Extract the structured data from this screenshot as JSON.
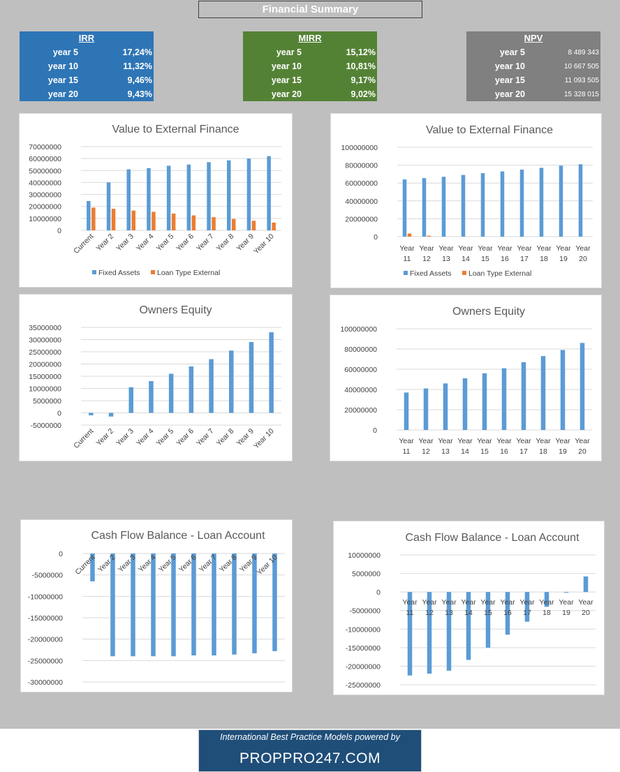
{
  "page": {
    "title": "Financial Summary"
  },
  "metrics": [
    {
      "id": "irr",
      "title": "IRR",
      "color": "#2e75b6",
      "rows": [
        {
          "label": "year 5",
          "value": "17,24%"
        },
        {
          "label": "year 10",
          "value": "11,32%"
        },
        {
          "label": "year 15",
          "value": "9,46%"
        },
        {
          "label": "year 20",
          "value": "9,43%"
        }
      ]
    },
    {
      "id": "mirr",
      "title": "MIRR",
      "color": "#548235",
      "rows": [
        {
          "label": "year 5",
          "value": "15,12%"
        },
        {
          "label": "year 10",
          "value": "10,81%"
        },
        {
          "label": "year 15",
          "value": "9,17%"
        },
        {
          "label": "year 20",
          "value": "9,02%"
        }
      ]
    },
    {
      "id": "npv",
      "title": "NPV",
      "color": "#808080",
      "rows": [
        {
          "label": "year 5",
          "value": "8 489 343"
        },
        {
          "label": "year 10",
          "value": "10 667 505"
        },
        {
          "label": "year 15",
          "value": "11 093 505"
        },
        {
          "label": "year 20",
          "value": "15 328 015"
        }
      ]
    }
  ],
  "colors": {
    "blue": "#5b9bd5",
    "orange": "#ed7d31",
    "grid": "#d9d9d9",
    "text": "#595959"
  },
  "chart_data": [
    {
      "type": "bar",
      "title": "Value to External Finance",
      "categories": [
        "Current",
        "Year 2",
        "Year 3",
        "Year 4",
        "Year 5",
        "Year 6",
        "Year 7",
        "Year 8",
        "Year 9",
        "Year 10"
      ],
      "series": [
        {
          "name": "Fixed Assets",
          "values": [
            24500000,
            40000000,
            51000000,
            52000000,
            54000000,
            55000000,
            57000000,
            58500000,
            60000000,
            62000000
          ]
        },
        {
          "name": "Loan Type External",
          "values": [
            19000000,
            18000000,
            16500000,
            15500000,
            14000000,
            12500000,
            11000000,
            9500000,
            8000000,
            6500000
          ]
        }
      ],
      "ylim": [
        0,
        70000000
      ],
      "yticks": [
        0,
        10000000,
        20000000,
        30000000,
        40000000,
        50000000,
        60000000,
        70000000
      ],
      "legend": "bottom",
      "grid": true
    },
    {
      "type": "bar",
      "title": "Value to External Finance",
      "categories": [
        "Year 11",
        "Year 12",
        "Year 13",
        "Year 14",
        "Year 15",
        "Year 16",
        "Year 17",
        "Year 18",
        "Year 19",
        "Year 20"
      ],
      "series": [
        {
          "name": "Fixed Assets",
          "values": [
            64000000,
            65500000,
            67000000,
            69000000,
            71000000,
            73000000,
            75000000,
            77000000,
            79500000,
            81000000
          ]
        },
        {
          "name": "Loan Type External",
          "values": [
            3500000,
            1000000,
            0,
            0,
            0,
            0,
            0,
            0,
            0,
            0
          ]
        }
      ],
      "ylim": [
        0,
        100000000
      ],
      "yticks": [
        0,
        20000000,
        40000000,
        60000000,
        80000000,
        100000000
      ],
      "legend": "bottom",
      "grid": true
    },
    {
      "type": "bar",
      "title": "Owners Equity",
      "categories": [
        "Current",
        "Year 2",
        "Year 3",
        "Year 4",
        "Year 5",
        "Year 6",
        "Year 7",
        "Year 8",
        "Year 9",
        "Year 10"
      ],
      "series": [
        {
          "values": [
            -1000000,
            -1500000,
            10500000,
            13000000,
            16000000,
            19000000,
            22000000,
            25500000,
            29000000,
            33000000
          ]
        }
      ],
      "ylim": [
        -5000000,
        35000000
      ],
      "yticks": [
        -5000000,
        0,
        5000000,
        10000000,
        15000000,
        20000000,
        25000000,
        30000000,
        35000000
      ],
      "legend": "none",
      "grid": true
    },
    {
      "type": "bar",
      "title": "Owners Equity",
      "categories": [
        "Year 11",
        "Year 12",
        "Year 13",
        "Year 14",
        "Year 15",
        "Year 16",
        "Year 17",
        "Year 18",
        "Year 19",
        "Year 20"
      ],
      "series": [
        {
          "values": [
            37000000,
            41000000,
            46000000,
            51000000,
            56000000,
            61000000,
            67000000,
            73000000,
            79000000,
            86000000
          ]
        }
      ],
      "ylim": [
        0,
        100000000
      ],
      "yticks": [
        0,
        20000000,
        40000000,
        60000000,
        80000000,
        100000000
      ],
      "legend": "none",
      "grid": true
    },
    {
      "type": "bar",
      "title": "Cash Flow Balance - Loan Account",
      "categories": [
        "Current",
        "Year 2",
        "Year 3",
        "Year 4",
        "Year 5",
        "Year 6",
        "Year 7",
        "Year 8",
        "Year 9",
        "Year 10"
      ],
      "series": [
        {
          "values": [
            -6500000,
            -24000000,
            -24000000,
            -24000000,
            -24000000,
            -23800000,
            -23800000,
            -23600000,
            -23300000,
            -22800000
          ]
        }
      ],
      "ylim": [
        -30000000,
        0
      ],
      "yticks": [
        -30000000,
        -25000000,
        -20000000,
        -15000000,
        -10000000,
        -5000000,
        0
      ],
      "legend": "none",
      "grid": true
    },
    {
      "type": "bar",
      "title": "Cash Flow Balance - Loan Account",
      "categories": [
        "Year 11",
        "Year 12",
        "Year 13",
        "Year 14",
        "Year 15",
        "Year 16",
        "Year 17",
        "Year 18",
        "Year 19",
        "Year 20"
      ],
      "series": [
        {
          "values": [
            -22500000,
            -22000000,
            -21200000,
            -18300000,
            -15000000,
            -11500000,
            -8000000,
            -4000000,
            -200000,
            4200000
          ]
        }
      ],
      "ylim": [
        -25000000,
        10000000
      ],
      "yticks": [
        -25000000,
        -20000000,
        -15000000,
        -10000000,
        -5000000,
        0,
        5000000,
        10000000
      ],
      "legend": "none",
      "grid": true
    }
  ],
  "footer": {
    "tagline": "International Best Practice Models powered by",
    "brand": "PROPPRO247.COM"
  }
}
